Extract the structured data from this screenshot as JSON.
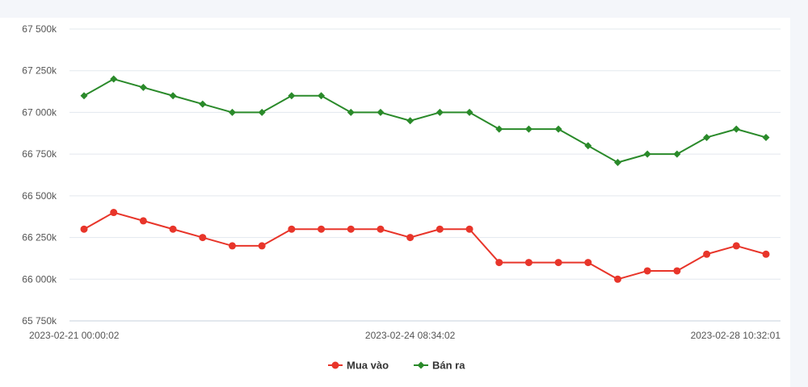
{
  "chart_data": {
    "type": "line",
    "title": "",
    "xlabel": "",
    "ylabel": "",
    "ylim": [
      65750,
      67500
    ],
    "y_ticks": [
      65750,
      66000,
      66250,
      66500,
      66750,
      67000,
      67250,
      67500
    ],
    "y_tick_labels": [
      "65 750k",
      "66 000k",
      "66 250k",
      "66 500k",
      "66 750k",
      "67 000k",
      "67 250k",
      "67 500k"
    ],
    "x_tick_labels": [
      "2023-02-21 00:00:02",
      "2023-02-24 08:34:02",
      "2023-02-28 10:32:01"
    ],
    "x_tick_indices": [
      0,
      11,
      23
    ],
    "grid": true,
    "legend_position": "bottom-center",
    "series": [
      {
        "name": "Mua vào",
        "color": "#e8352a",
        "marker": "circle",
        "values": [
          66300,
          66400,
          66350,
          66300,
          66250,
          66200,
          66200,
          66300,
          66300,
          66300,
          66300,
          66250,
          66300,
          66300,
          66100,
          66100,
          66100,
          66100,
          66000,
          66050,
          66050,
          66150,
          66200,
          66150
        ]
      },
      {
        "name": "Bán ra",
        "color": "#2a8a2a",
        "marker": "diamond",
        "values": [
          67100,
          67200,
          67150,
          67100,
          67050,
          67000,
          67000,
          67100,
          67100,
          67000,
          67000,
          66950,
          67000,
          67000,
          66900,
          66900,
          66900,
          66800,
          66700,
          66750,
          66750,
          66850,
          66900,
          66850
        ]
      }
    ]
  }
}
